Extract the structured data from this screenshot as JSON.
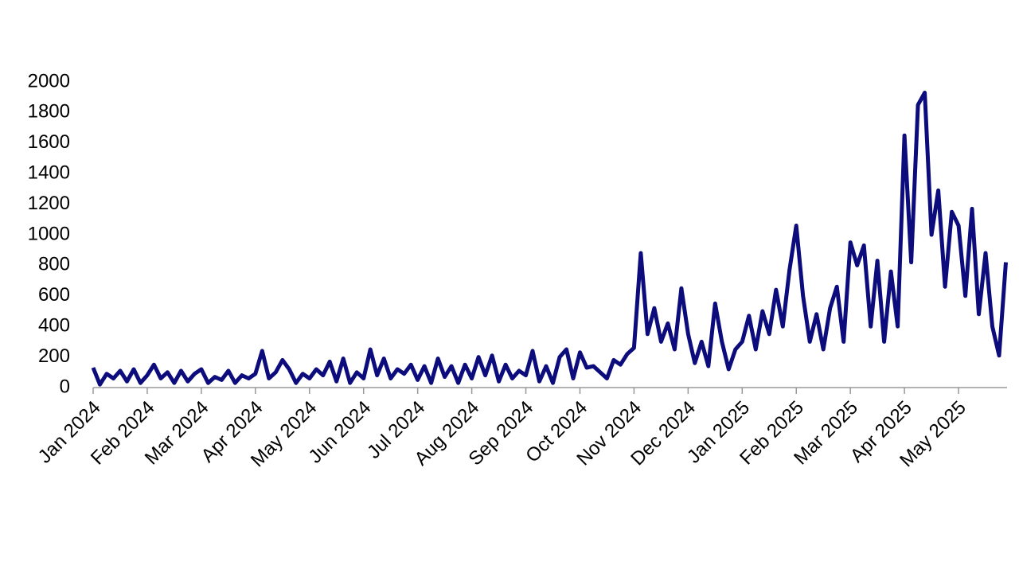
{
  "chart_data": {
    "type": "line",
    "categories": [
      "Jan 2024",
      null,
      null,
      null,
      null,
      null,
      null,
      null,
      "Feb 2024",
      null,
      null,
      null,
      null,
      null,
      null,
      null,
      "Mar 2024",
      null,
      null,
      null,
      null,
      null,
      null,
      null,
      "Apr 2024",
      null,
      null,
      null,
      null,
      null,
      null,
      null,
      "May 2024",
      null,
      null,
      null,
      null,
      null,
      null,
      null,
      "Jun 2024",
      null,
      null,
      null,
      null,
      null,
      null,
      null,
      "Jul 2024",
      null,
      null,
      null,
      null,
      null,
      null,
      null,
      "Aug 2024",
      null,
      null,
      null,
      null,
      null,
      null,
      null,
      "Sep 2024",
      null,
      null,
      null,
      null,
      null,
      null,
      null,
      "Oct 2024",
      null,
      null,
      null,
      null,
      null,
      null,
      null,
      "Nov 2024",
      null,
      null,
      null,
      null,
      null,
      null,
      null,
      "Dec 2024",
      null,
      null,
      null,
      null,
      null,
      null,
      null,
      "Jan 2025",
      null,
      null,
      null,
      null,
      null,
      null,
      null,
      "Feb 2025",
      null,
      null,
      null,
      null,
      null,
      null,
      null,
      "Mar 2025",
      null,
      null,
      null,
      null,
      null,
      null,
      null,
      "Apr 2025",
      null,
      null,
      null,
      null,
      null,
      null,
      null,
      "May 2025",
      null,
      null,
      null,
      null,
      null,
      null,
      null
    ],
    "values": [
      130,
      20,
      90,
      60,
      110,
      40,
      120,
      30,
      80,
      150,
      60,
      100,
      30,
      110,
      40,
      90,
      120,
      30,
      70,
      50,
      110,
      30,
      80,
      60,
      90,
      240,
      60,
      100,
      180,
      120,
      30,
      90,
      60,
      120,
      80,
      170,
      40,
      190,
      30,
      100,
      60,
      250,
      80,
      190,
      60,
      120,
      90,
      150,
      50,
      140,
      30,
      190,
      70,
      140,
      30,
      150,
      60,
      200,
      80,
      210,
      40,
      150,
      60,
      110,
      80,
      240,
      40,
      140,
      30,
      200,
      250,
      60,
      230,
      130,
      140,
      100,
      60,
      180,
      150,
      220,
      260,
      880,
      350,
      520,
      300,
      420,
      250,
      650,
      350,
      160,
      300,
      140,
      550,
      300,
      120,
      250,
      300,
      470,
      250,
      500,
      350,
      640,
      400,
      770,
      1060,
      600,
      300,
      480,
      250,
      520,
      660,
      300,
      950,
      800,
      930,
      400,
      830,
      300,
      760,
      400,
      1650,
      820,
      1850,
      1930,
      1000,
      1290,
      660,
      1150,
      1060,
      600,
      1170,
      480,
      880,
      400,
      210,
      820
    ],
    "color": "#0c0c7c",
    "ylim": [
      0,
      2000
    ],
    "yticks": [
      0,
      200,
      400,
      600,
      800,
      1000,
      1200,
      1400,
      1600,
      1800,
      2000
    ]
  }
}
